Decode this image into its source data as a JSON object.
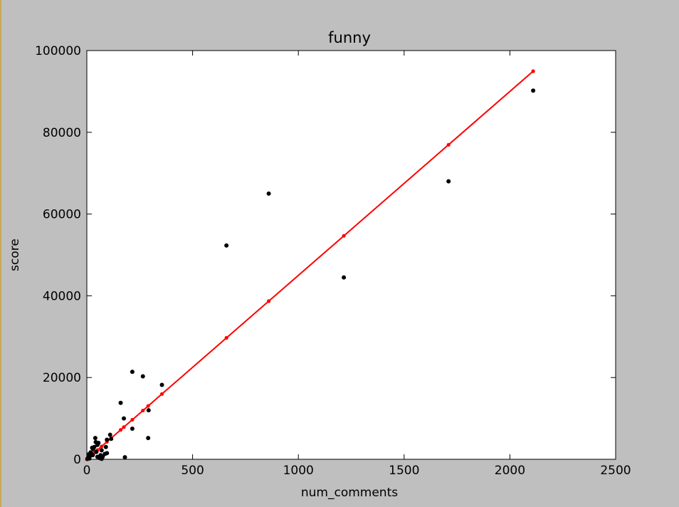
{
  "chart_data": {
    "type": "scatter",
    "title": "funny",
    "xlabel": "num_comments",
    "ylabel": "score",
    "xlim": [
      0,
      2500
    ],
    "ylim": [
      0,
      100000
    ],
    "x_ticks": [
      "0",
      "500",
      "1000",
      "1500",
      "2000",
      "2500"
    ],
    "y_ticks": [
      "0",
      "20000",
      "40000",
      "60000",
      "80000",
      "100000"
    ],
    "grid": false,
    "colors": {
      "points": "#000000",
      "fit": "#ff0000",
      "background": "#bfbfbf",
      "plot_bg": "#ffffff"
    },
    "series": [
      {
        "values": [
          [
            2110,
            90200
          ],
          [
            1710,
            68000
          ],
          [
            1215,
            44500
          ],
          [
            860,
            65000
          ],
          [
            660,
            52300
          ],
          [
            355,
            18200
          ],
          [
            292,
            12000
          ],
          [
            290,
            5200
          ],
          [
            265,
            20300
          ],
          [
            215,
            21400
          ],
          [
            215,
            7500
          ],
          [
            175,
            10000
          ],
          [
            160,
            13800
          ],
          [
            180,
            500
          ],
          [
            110,
            6000
          ],
          [
            115,
            5000
          ],
          [
            95,
            4800
          ],
          [
            90,
            3000
          ],
          [
            95,
            1500
          ],
          [
            70,
            2200
          ],
          [
            65,
            1000
          ],
          [
            55,
            4000
          ],
          [
            50,
            3500
          ],
          [
            40,
            5200
          ],
          [
            42,
            4200
          ],
          [
            35,
            3000
          ],
          [
            30,
            2500
          ],
          [
            25,
            2800
          ],
          [
            20,
            1500
          ],
          [
            15,
            800
          ],
          [
            10,
            500
          ],
          [
            8,
            1200
          ],
          [
            5,
            300
          ],
          [
            60,
            300
          ],
          [
            75,
            600
          ],
          [
            45,
            1800
          ],
          [
            28,
            1000
          ],
          [
            12,
            200
          ],
          [
            3,
            100
          ],
          [
            18,
            1700
          ],
          [
            70,
            100
          ],
          [
            50,
            600
          ],
          [
            85,
            1300
          ]
        ]
      },
      {
        "values": [
          [
            0,
            0
          ],
          [
            10,
            450
          ],
          [
            20,
            900
          ],
          [
            35,
            1575
          ],
          [
            50,
            2250
          ],
          [
            70,
            3150
          ],
          [
            95,
            4275
          ],
          [
            115,
            5175
          ],
          [
            160,
            7200
          ],
          [
            175,
            7875
          ],
          [
            215,
            9675
          ],
          [
            265,
            11925
          ],
          [
            290,
            13050
          ],
          [
            355,
            15975
          ],
          [
            660,
            29700
          ],
          [
            860,
            38700
          ],
          [
            1215,
            54675
          ],
          [
            1710,
            76950
          ],
          [
            2110,
            94950
          ]
        ]
      }
    ]
  }
}
